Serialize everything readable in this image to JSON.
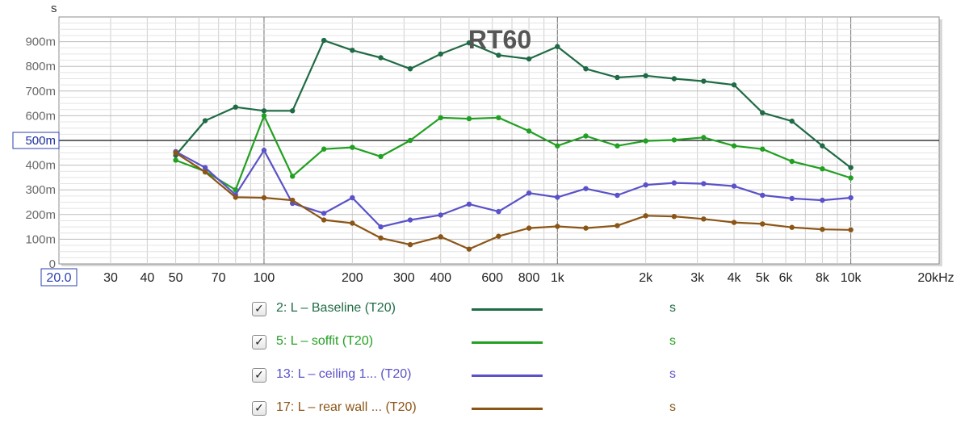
{
  "chart_data": {
    "type": "line",
    "title": "RT60",
    "y_unit_label": "s",
    "x_scale": "log",
    "xlim": [
      20,
      20000
    ],
    "ylim": [
      0,
      1.0
    ],
    "reference_line": 0.5,
    "grid": true,
    "x_tick_labels": [
      {
        "value": 20,
        "label": "20.0"
      },
      {
        "value": 30,
        "label": "30"
      },
      {
        "value": 40,
        "label": "40"
      },
      {
        "value": 50,
        "label": "50"
      },
      {
        "value": 70,
        "label": "70"
      },
      {
        "value": 100,
        "label": "100"
      },
      {
        "value": 200,
        "label": "200"
      },
      {
        "value": 300,
        "label": "300"
      },
      {
        "value": 400,
        "label": "400"
      },
      {
        "value": 600,
        "label": "600"
      },
      {
        "value": 800,
        "label": "800"
      },
      {
        "value": 1000,
        "label": "1k"
      },
      {
        "value": 2000,
        "label": "2k"
      },
      {
        "value": 3000,
        "label": "3k"
      },
      {
        "value": 4000,
        "label": "4k"
      },
      {
        "value": 5000,
        "label": "5k"
      },
      {
        "value": 6000,
        "label": "6k"
      },
      {
        "value": 8000,
        "label": "8k"
      },
      {
        "value": 10000,
        "label": "10k"
      },
      {
        "value": 20000,
        "label": "20kHz"
      }
    ],
    "y_tick_labels": [
      {
        "value": 0,
        "label": "0"
      },
      {
        "value": 0.1,
        "label": "100m"
      },
      {
        "value": 0.2,
        "label": "200m"
      },
      {
        "value": 0.3,
        "label": "300m"
      },
      {
        "value": 0.4,
        "label": "400m"
      },
      {
        "value": 0.5,
        "label": "500m"
      },
      {
        "value": 0.6,
        "label": "600m"
      },
      {
        "value": 0.7,
        "label": "700m"
      },
      {
        "value": 0.8,
        "label": "800m"
      },
      {
        "value": 0.9,
        "label": "900m"
      }
    ],
    "x": [
      50,
      63,
      80,
      100,
      125,
      160,
      200,
      250,
      315,
      400,
      500,
      630,
      800,
      1000,
      1250,
      1600,
      2000,
      2500,
      3150,
      4000,
      5000,
      6300,
      8000,
      10000
    ],
    "series": [
      {
        "name": "2: L – Baseline (T20)",
        "color": "#1f6b45",
        "values": [
          0.44,
          0.58,
          0.635,
          0.62,
          0.62,
          0.905,
          0.865,
          0.835,
          0.79,
          0.85,
          0.895,
          0.845,
          0.83,
          0.88,
          0.79,
          0.755,
          0.762,
          0.75,
          0.74,
          0.725,
          0.612,
          0.578,
          0.478,
          0.39
        ]
      },
      {
        "name": "5: L – soffit (T20)",
        "color": "#22a022",
        "values": [
          0.42,
          0.375,
          0.3,
          0.6,
          0.355,
          0.465,
          0.472,
          0.435,
          0.5,
          0.592,
          0.588,
          0.592,
          0.538,
          0.478,
          0.518,
          0.478,
          0.498,
          0.502,
          0.512,
          0.478,
          0.465,
          0.415,
          0.385,
          0.348
        ]
      },
      {
        "name": "13: L – ceiling 1... (T20)",
        "color": "#5a52c8",
        "values": [
          0.455,
          0.39,
          0.28,
          0.46,
          0.245,
          0.205,
          0.268,
          0.15,
          0.178,
          0.198,
          0.242,
          0.212,
          0.287,
          0.27,
          0.305,
          0.278,
          0.32,
          0.328,
          0.325,
          0.315,
          0.278,
          0.265,
          0.258,
          0.268
        ]
      },
      {
        "name": "17: L – rear wall ... (T20)",
        "color": "#8b5516",
        "values": [
          0.45,
          0.372,
          0.27,
          0.268,
          0.258,
          0.178,
          0.165,
          0.105,
          0.078,
          0.11,
          0.06,
          0.112,
          0.145,
          0.152,
          0.145,
          0.155,
          0.195,
          0.192,
          0.182,
          0.168,
          0.162,
          0.148,
          0.14,
          0.138
        ]
      }
    ]
  },
  "legend": {
    "items": [
      {
        "check": "✓",
        "label": "2: L – Baseline (T20)",
        "unit": "s",
        "color": "#1f6b45"
      },
      {
        "check": "✓",
        "label": "5: L – soffit (T20)",
        "unit": "s",
        "color": "#22a022"
      },
      {
        "check": "✓",
        "label": "13: L – ceiling 1... (T20)",
        "unit": "s",
        "color": "#5a52c8"
      },
      {
        "check": "✓",
        "label": "17: L – rear wall ... (T20)",
        "unit": "s",
        "color": "#8b5516"
      }
    ]
  }
}
